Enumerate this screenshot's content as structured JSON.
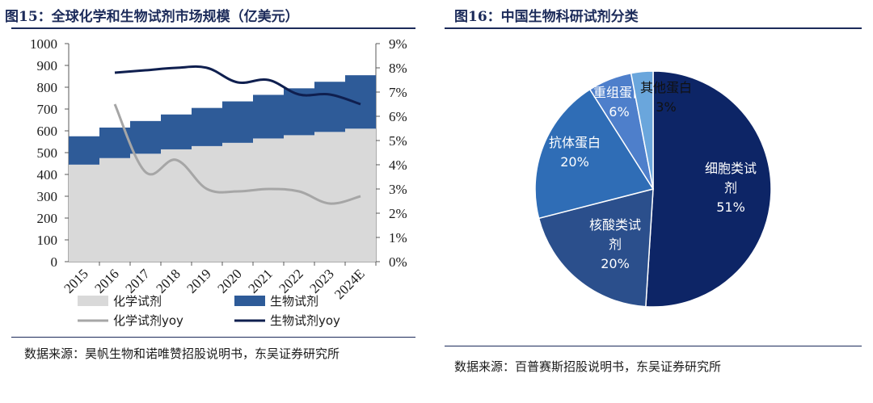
{
  "left": {
    "title": "图15：全球化学和生物试剂市场规模（亿美元）",
    "source": "数据来源：昊帆生物和诺唯赞招股说明书，东吴证券研究所"
  },
  "right": {
    "title": "图16：中国生物科研试剂分类",
    "source": "数据来源：百普赛斯招股说明书，东吴证券研究所"
  },
  "chart_data": [
    {
      "type": "bar",
      "stacked": true,
      "categories": [
        "2015",
        "2016",
        "2017",
        "2018",
        "2019",
        "2020",
        "2021",
        "2022",
        "2023",
        "2024E"
      ],
      "series": [
        {
          "name": "化学试剂",
          "values": [
            445,
            475,
            495,
            515,
            530,
            545,
            565,
            580,
            595,
            610
          ],
          "color": "#d9d9d9"
        },
        {
          "name": "生物试剂",
          "values": [
            130,
            140,
            150,
            160,
            175,
            190,
            200,
            215,
            230,
            245
          ],
          "color": "#2e5b98"
        }
      ],
      "lines": [
        {
          "name": "化学试剂yoy",
          "axis": "right",
          "color": "#a6a6a6",
          "values": [
            null,
            0.065,
            0.037,
            0.042,
            0.03,
            0.029,
            0.03,
            0.029,
            0.024,
            0.027
          ]
        },
        {
          "name": "生物试剂yoy",
          "axis": "right",
          "color": "#0f1f4f",
          "values": [
            null,
            0.078,
            0.079,
            0.08,
            0.08,
            0.074,
            0.075,
            0.069,
            0.069,
            0.065
          ]
        }
      ],
      "ylim": [
        0,
        1000
      ],
      "yticks": [
        "0",
        "100",
        "200",
        "300",
        "400",
        "500",
        "600",
        "700",
        "800",
        "900",
        "1000"
      ],
      "y2lim": [
        0,
        0.09
      ],
      "y2ticks": [
        "0%",
        "1%",
        "2%",
        "3%",
        "4%",
        "5%",
        "6%",
        "7%",
        "8%",
        "9%"
      ],
      "legend_position": "bottom"
    },
    {
      "type": "pie",
      "slices": [
        {
          "label_lines": [
            "细胞类试",
            "剂",
            "51%"
          ],
          "value": 51,
          "color": "#0d2566"
        },
        {
          "label_lines": [
            "核酸类试",
            "剂",
            "20%"
          ],
          "value": 20,
          "color": "#2b4f8c"
        },
        {
          "label_lines": [
            "抗体蛋白",
            "20%"
          ],
          "value": 20,
          "color": "#2f6db6"
        },
        {
          "label_lines": [
            "重组蛋白",
            "6%"
          ],
          "value": 6,
          "color": "#4e7fcb"
        },
        {
          "label_lines": [
            "其他蛋白",
            "3%"
          ],
          "value": 3,
          "color": "#6aa6dc"
        }
      ]
    }
  ]
}
